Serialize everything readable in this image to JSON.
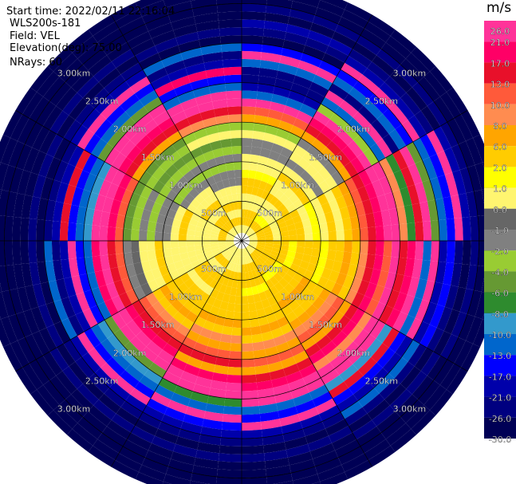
{
  "header": {
    "start_time": "Start time: 2022/02/11 22:16:04",
    "site": "WLS200s-181",
    "field": "Field: VEL",
    "elevation": "Elevation(deg): 75.00",
    "nrays": "NRays: 60"
  },
  "colorbar": {
    "units": "m/s",
    "labels": [
      "26.0",
      "21.0",
      "17.0",
      "13.0",
      "10.0",
      "8.0",
      "6.0",
      "2.0",
      "1.0",
      "0.0",
      "-1.0",
      "-2.0",
      "-4.0",
      "-6.0",
      "-8.0",
      "-10.0",
      "-13.0",
      "-17.0",
      "-21.0",
      "-26.0",
      "-30.0"
    ],
    "colors": [
      "#ff3399",
      "#ff0066",
      "#e8102a",
      "#ff5a3a",
      "#ff8c50",
      "#ffa500",
      "#ffcc00",
      "#ffff00",
      "#fff570",
      "#666666",
      "#808080",
      "#99cc33",
      "#669933",
      "#2e8b2e",
      "#3399cc",
      "#0066cc",
      "#0000ff",
      "#0000aa",
      "#000080",
      "#000055"
    ]
  },
  "chart_data": {
    "type": "heatmap",
    "projection": "polar",
    "field": "VEL",
    "units": "m/s",
    "n_rays": 60,
    "range_rings_km": [
      0.5,
      1.0,
      1.5,
      2.0,
      2.5,
      3.0
    ],
    "ring_labels": [
      "500m",
      "1.00km",
      "1.50km",
      "2.00km",
      "2.50km",
      "3.00km"
    ],
    "max_range_km": 3.3,
    "gate_km": 0.1,
    "first_gate_km": 0.1,
    "radial_spokes_deg": [
      0,
      30,
      60,
      90,
      120,
      150,
      180,
      210,
      240,
      270,
      300,
      330
    ],
    "sector_profiles_mps": [
      {
        "az": [
          0,
          30
        ],
        "values": [
          0,
          2,
          2,
          0,
          0,
          2,
          2,
          1,
          0,
          0,
          -2,
          -2,
          0,
          -4,
          6,
          10,
          26,
          -13,
          -21,
          -26,
          -26,
          -13,
          21,
          -17,
          -30,
          -26,
          -21,
          -30,
          -26,
          -30,
          -30,
          -30
        ]
      },
      {
        "az": [
          30,
          60
        ],
        "values": [
          0,
          2,
          1,
          0,
          0,
          2,
          0,
          0,
          2,
          0,
          -2,
          0,
          0,
          -2,
          6,
          13,
          17,
          26,
          -4,
          -13,
          21,
          -26,
          -13,
          -17,
          26,
          -21,
          -26,
          -30,
          -26,
          -30,
          -30,
          -30
        ]
      },
      {
        "az": [
          60,
          90
        ],
        "values": [
          0,
          2,
          2,
          0,
          2,
          2,
          2,
          0,
          1,
          0,
          2,
          0,
          2,
          6,
          10,
          13,
          17,
          21,
          26,
          8,
          -8,
          13,
          21,
          -6,
          -13,
          -17,
          26,
          -21,
          -26,
          -30,
          -30,
          -30
        ]
      },
      {
        "az": [
          90,
          120
        ],
        "values": [
          0,
          2,
          2,
          2,
          2,
          1,
          2,
          2,
          2,
          1,
          2,
          2,
          6,
          2,
          8,
          13,
          17,
          10,
          21,
          13,
          17,
          26,
          -13,
          21,
          -21,
          -17,
          -26,
          -30,
          -26,
          -30,
          -30,
          -30
        ]
      },
      {
        "az": [
          120,
          150
        ],
        "values": [
          0,
          2,
          2,
          2,
          1,
          2,
          2,
          2,
          6,
          2,
          2,
          6,
          8,
          10,
          6,
          13,
          17,
          8,
          21,
          26,
          -10,
          13,
          -17,
          -21,
          -13,
          -26,
          -30,
          -26,
          -30,
          -30,
          -30,
          -30
        ]
      },
      {
        "az": [
          150,
          180
        ],
        "values": [
          0,
          0,
          2,
          2,
          2,
          1,
          2,
          2,
          2,
          2,
          6,
          2,
          8,
          6,
          10,
          6,
          13,
          17,
          21,
          26,
          -13,
          -17,
          21,
          -21,
          -26,
          -30,
          -26,
          -30,
          -30,
          -30,
          -30,
          -30
        ]
      },
      {
        "az": [
          180,
          210
        ],
        "values": [
          0,
          0,
          0,
          2,
          2,
          2,
          2,
          2,
          2,
          6,
          2,
          8,
          6,
          10,
          13,
          6,
          17,
          21,
          26,
          -8,
          -13,
          21,
          -17,
          -21,
          -26,
          -30,
          -26,
          -30,
          -30,
          -30,
          -30,
          -30
        ]
      },
      {
        "az": [
          210,
          240
        ],
        "values": [
          0,
          0,
          2,
          0,
          2,
          2,
          0,
          2,
          2,
          2,
          6,
          2,
          8,
          10,
          13,
          17,
          21,
          26,
          -6,
          -10,
          -13,
          -17,
          26,
          -21,
          -26,
          -30,
          -26,
          -30,
          -30,
          -30,
          -30,
          -30
        ]
      },
      {
        "az": [
          240,
          270
        ],
        "values": [
          0,
          0,
          0,
          0,
          0,
          0,
          0,
          0,
          0,
          2,
          0,
          0,
          -1,
          -2,
          10,
          13,
          26,
          17,
          -13,
          -17,
          21,
          -21,
          -26,
          -13,
          -30,
          -26,
          -30,
          -30,
          -30,
          -30,
          -30,
          -30
        ]
      },
      {
        "az": [
          270,
          300
        ],
        "values": [
          0,
          2,
          0,
          0,
          0,
          0,
          2,
          0,
          -2,
          -2,
          -4,
          -2,
          -4,
          -6,
          10,
          17,
          21,
          26,
          -10,
          -13,
          -17,
          13,
          -21,
          -26,
          -30,
          -26,
          -30,
          -30,
          -30,
          -30,
          -30,
          -30
        ]
      },
      {
        "az": [
          300,
          330
        ],
        "values": [
          0,
          2,
          2,
          0,
          2,
          0,
          0,
          -2,
          -4,
          -2,
          -4,
          -6,
          -4,
          -6,
          6,
          13,
          17,
          21,
          26,
          -6,
          -13,
          -17,
          21,
          -21,
          -26,
          -30,
          -26,
          -30,
          -30,
          -30,
          -30,
          -30
        ]
      },
      {
        "az": [
          330,
          360
        ],
        "values": [
          0,
          2,
          0,
          2,
          0,
          0,
          -2,
          -2,
          -4,
          -2,
          -4,
          -6,
          0,
          -4,
          8,
          13,
          21,
          26,
          -13,
          -17,
          17,
          -21,
          -26,
          -13,
          -30,
          -26,
          -30,
          -30,
          -30,
          -30,
          -30,
          -30
        ]
      }
    ]
  }
}
